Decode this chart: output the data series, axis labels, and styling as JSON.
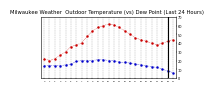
{
  "title": "Milwaukee Weather  Outdoor Temperature (vs) Dew Point (Last 24 Hours)",
  "title_fontsize": 3.8,
  "bg_color": "#ffffff",
  "plot_bg_color": "#ffffff",
  "grid_color": "#aaaaaa",
  "temp_color": "#cc0000",
  "dew_color": "#0000cc",
  "temp_values": [
    22,
    20,
    22,
    26,
    30,
    36,
    38,
    40,
    48,
    54,
    58,
    60,
    62,
    61,
    58,
    54,
    50,
    46,
    44,
    42,
    40,
    38,
    40,
    42,
    44
  ],
  "dew_values": [
    14,
    14,
    14,
    14,
    15,
    16,
    19,
    20,
    20,
    20,
    21,
    21,
    20,
    20,
    18,
    18,
    17,
    16,
    15,
    14,
    13,
    12,
    10,
    8,
    6
  ],
  "ylim": [
    0,
    70
  ],
  "yticks": [
    0,
    10,
    20,
    30,
    40,
    50,
    60,
    70
  ],
  "ytick_labels": [
    "0",
    "10",
    "20",
    "30",
    "40",
    "50",
    "60",
    "70"
  ],
  "num_points": 25,
  "vline_x": 23,
  "marker": ".",
  "markersize": 1.5,
  "linewidth": 0.4,
  "linestyle": "dotted",
  "grid_linewidth": 0.3,
  "vline_linewidth": 0.8
}
